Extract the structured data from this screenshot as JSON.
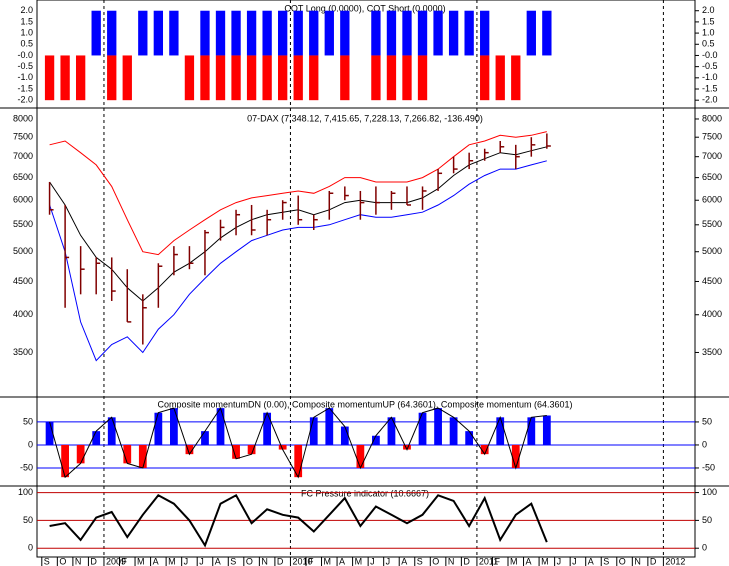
{
  "chart_data": [
    {
      "type": "bar",
      "title": "COT Long (0.0000), COT Short (0.0000)",
      "series": [
        {
          "color": "#0000ff",
          "values": [
            0,
            0,
            0,
            2,
            2,
            0,
            2,
            2,
            2,
            0,
            2,
            2,
            2,
            2,
            2,
            2,
            2,
            2,
            2,
            2,
            0,
            2,
            2,
            2,
            2,
            2,
            2,
            2,
            2,
            0,
            0,
            2,
            2,
            null,
            null,
            null,
            null,
            null,
            null,
            null,
            null
          ]
        },
        {
          "color": "#ff0000",
          "values": [
            -2,
            -2,
            -2,
            0,
            -2,
            -2,
            0,
            0,
            0,
            -2,
            -2,
            -2,
            -2,
            -2,
            -2,
            -2,
            -2,
            -2,
            0,
            -2,
            0,
            -2,
            -2,
            -2,
            -2,
            0,
            0,
            0,
            -2,
            -2,
            -2,
            0,
            0,
            null,
            null,
            null,
            null,
            null,
            null,
            null,
            null
          ]
        }
      ],
      "ylim": [
        -2.26,
        2.39
      ],
      "yticks": [
        {
          "value": 2,
          "label": "2.0"
        },
        {
          "value": 1.5,
          "label": "1.5"
        },
        {
          "value": 1,
          "label": "1.0"
        },
        {
          "value": 0.5,
          "label": "0.5"
        },
        {
          "value": 0,
          "label": "-0.0"
        },
        {
          "value": -0.5,
          "label": "-0.5"
        },
        {
          "value": -1,
          "label": "-1.0"
        },
        {
          "value": -1.5,
          "label": "-1.5"
        },
        {
          "value": -2,
          "label": "-2.0"
        }
      ],
      "grid": false
    },
    {
      "type": "ohlc",
      "title": "07-DAX (7,348.12, 7,415.65, 7,228.13, 7,266.82, -136.490)",
      "color": "#800000",
      "high": [
        6400,
        5900,
        5100,
        4900,
        4900,
        4700,
        4300,
        4800,
        5100,
        5100,
        5400,
        5600,
        5800,
        5900,
        5800,
        6000,
        6100,
        5700,
        6200,
        6300,
        6200,
        6300,
        6200,
        6300,
        6300,
        6700,
        7000,
        7100,
        7200,
        7400,
        7300,
        7500,
        7600,
        null,
        null,
        null,
        null,
        null,
        null,
        null,
        null
      ],
      "low": [
        5700,
        4100,
        4300,
        4300,
        4200,
        3900,
        3600,
        4100,
        4600,
        4700,
        4600,
        5200,
        5300,
        5300,
        5300,
        5600,
        5500,
        5400,
        5600,
        6000,
        5600,
        5700,
        5800,
        5900,
        5800,
        6200,
        6600,
        6700,
        6900,
        7100,
        6700,
        7000,
        7200,
        null,
        null,
        null,
        null,
        null,
        null,
        null,
        null
      ],
      "close": [
        5800,
        4900,
        4700,
        4800,
        4350,
        3900,
        4100,
        4750,
        4950,
        4800,
        5350,
        5450,
        5700,
        5400,
        5600,
        5950,
        5600,
        5600,
        6150,
        6100,
        5950,
        5950,
        6150,
        5900,
        6200,
        6600,
        6700,
        6900,
        7100,
        7250,
        7000,
        7300,
        7270,
        null,
        null,
        null,
        null,
        null,
        null,
        null,
        null
      ],
      "series": [
        {
          "color": "#ff0000",
          "values": [
            7300,
            7400,
            7100,
            6800,
            6300,
            5600,
            5000,
            4950,
            5200,
            5400,
            5600,
            5800,
            5950,
            6050,
            6100,
            6150,
            6200,
            6150,
            6300,
            6500,
            6500,
            6400,
            6400,
            6400,
            6500,
            6700,
            7000,
            7300,
            7400,
            7550,
            7500,
            7550,
            7650,
            null,
            null,
            null,
            null,
            null,
            null,
            null,
            null
          ]
        },
        {
          "color": "#000000",
          "values": [
            6400,
            5900,
            5300,
            4900,
            4700,
            4400,
            4200,
            4400,
            4650,
            4800,
            5000,
            5250,
            5450,
            5600,
            5700,
            5750,
            5800,
            5700,
            5800,
            5950,
            6000,
            5950,
            5950,
            5950,
            6050,
            6250,
            6550,
            6800,
            6950,
            7100,
            7050,
            7150,
            7250,
            null,
            null,
            null,
            null,
            null,
            null,
            null,
            null
          ]
        },
        {
          "color": "#0000ff",
          "values": [
            5900,
            5000,
            3900,
            3400,
            3600,
            3700,
            3500,
            3800,
            4000,
            4300,
            4550,
            4800,
            5000,
            5200,
            5300,
            5400,
            5450,
            5450,
            5500,
            5600,
            5700,
            5650,
            5650,
            5700,
            5750,
            5900,
            6100,
            6350,
            6550,
            6700,
            6700,
            6800,
            6900,
            null,
            null,
            null,
            null,
            null,
            null,
            null,
            null
          ]
        }
      ],
      "log_scale": true,
      "ylim": [
        3000,
        8200
      ],
      "yticks": [
        8000,
        7500,
        7000,
        6500,
        6000,
        5500,
        5000,
        4500,
        4000,
        3500
      ],
      "grid": false
    },
    {
      "type": "bar",
      "title": "Composite momentumDN (0.00), Composite momentumUP (64.3601), Composite momentum (64.3601)",
      "series": [
        {
          "color": "#0000ff",
          "negative_color": "#ff0000",
          "line_color": "#000000",
          "values": [
            50,
            -70,
            -40,
            30,
            60,
            -40,
            -50,
            70,
            80,
            -20,
            30,
            80,
            -30,
            -20,
            70,
            -10,
            -70,
            60,
            80,
            40,
            -50,
            20,
            60,
            -10,
            70,
            80,
            60,
            30,
            -20,
            60,
            -50,
            60,
            64,
            null,
            null,
            null,
            null,
            null,
            null,
            null,
            null
          ]
        }
      ],
      "ylim": [
        -87,
        102
      ],
      "yticks": [
        50,
        0,
        -50
      ],
      "grid": true,
      "grid_color": "#0000ff"
    },
    {
      "type": "line",
      "title": "FC Pressure indicator (10.6667)",
      "categories": [
        "S",
        "O",
        "N",
        "D",
        "2009",
        "F",
        "M",
        "A",
        "M",
        "J",
        "J",
        "A",
        "S",
        "O",
        "N",
        "D",
        "2010",
        "F",
        "M",
        "A",
        "M",
        "J",
        "J",
        "A",
        "S",
        "O",
        "N",
        "D",
        "2011",
        "F",
        "M",
        "A",
        "M",
        "J",
        "J",
        "A",
        "S",
        "O",
        "N",
        "D",
        "2012"
      ],
      "series": [
        {
          "color": "#000000",
          "values": [
            40,
            45,
            15,
            55,
            65,
            20,
            60,
            95,
            80,
            50,
            5,
            80,
            95,
            45,
            70,
            60,
            55,
            30,
            60,
            90,
            40,
            75,
            60,
            45,
            60,
            95,
            85,
            40,
            90,
            15,
            60,
            80,
            11,
            null,
            null,
            null,
            null,
            null,
            null,
            null,
            null
          ]
        }
      ],
      "ylim": [
        -14,
        110
      ],
      "yticks": [
        100,
        50,
        0
      ],
      "grid": true,
      "grid_color": "#c00000"
    }
  ]
}
